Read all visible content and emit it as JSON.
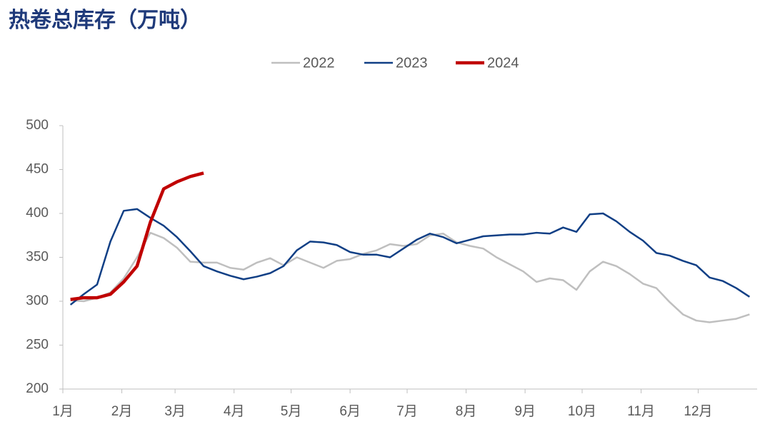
{
  "chart_data": {
    "type": "line",
    "title": "热卷总库存（万吨）",
    "x": [
      5,
      12,
      19,
      26,
      33,
      40,
      47,
      54,
      61,
      68,
      75,
      82,
      89,
      96,
      103,
      110,
      117,
      124,
      131,
      138,
      145,
      152,
      159,
      166,
      173,
      180,
      187,
      194,
      201,
      208,
      215,
      222,
      229,
      236,
      243,
      250,
      257,
      264,
      271,
      278,
      285,
      292,
      299,
      306,
      313,
      320,
      327,
      334,
      341,
      348,
      355,
      362
    ],
    "series": [
      {
        "name": "2022",
        "color": "#bfbfbf",
        "values": [
          301,
          300,
          304,
          310,
          326,
          350,
          378,
          372,
          361,
          345,
          344,
          344,
          338,
          336,
          344,
          349,
          341,
          350,
          344,
          338,
          346,
          348,
          354,
          358,
          365,
          363,
          365,
          375,
          377,
          367,
          363,
          360,
          350,
          342,
          334,
          322,
          326,
          324,
          313,
          334,
          345,
          340,
          331,
          320,
          315,
          299,
          285,
          278,
          276,
          278,
          280,
          285
        ]
      },
      {
        "name": "2023",
        "color": "#103f85",
        "values": [
          296,
          308,
          319,
          368,
          403,
          405,
          395,
          386,
          373,
          357,
          340,
          334,
          329,
          325,
          328,
          332,
          340,
          358,
          368,
          367,
          364,
          356,
          353,
          353,
          350,
          360,
          370,
          377,
          373,
          366,
          370,
          374,
          375,
          376,
          376,
          378,
          377,
          384,
          379,
          399,
          400,
          391,
          379,
          369,
          355,
          352,
          346,
          341,
          327,
          323,
          315,
          305
        ]
      },
      {
        "name": "2024",
        "color": "#c00000",
        "values": [
          302,
          304,
          304,
          308,
          322,
          340,
          390,
          428,
          436,
          442,
          446,
          null,
          null,
          null,
          null,
          null,
          null,
          null,
          null,
          null,
          null,
          null,
          null,
          null,
          null,
          null,
          null,
          null,
          null,
          null,
          null,
          null,
          null,
          null,
          null,
          null,
          null,
          null,
          null,
          null,
          null,
          null,
          null,
          null,
          null,
          null,
          null,
          null,
          null,
          null,
          null,
          null
        ]
      }
    ],
    "xlim": [
      1,
      366
    ],
    "xticks": [
      {
        "value": 1,
        "label": "1月"
      },
      {
        "value": 32,
        "label": "2月"
      },
      {
        "value": 60,
        "label": "3月"
      },
      {
        "value": 91,
        "label": "4月"
      },
      {
        "value": 121,
        "label": "5月"
      },
      {
        "value": 152,
        "label": "6月"
      },
      {
        "value": 182,
        "label": "7月"
      },
      {
        "value": 213,
        "label": "8月"
      },
      {
        "value": 244,
        "label": "9月"
      },
      {
        "value": 274,
        "label": "10月"
      },
      {
        "value": 305,
        "label": "11月"
      },
      {
        "value": 335,
        "label": "12月"
      }
    ],
    "ylim": [
      200,
      500
    ],
    "yticks": [
      200,
      250,
      300,
      350,
      400,
      450,
      500
    ],
    "legend": "top"
  }
}
